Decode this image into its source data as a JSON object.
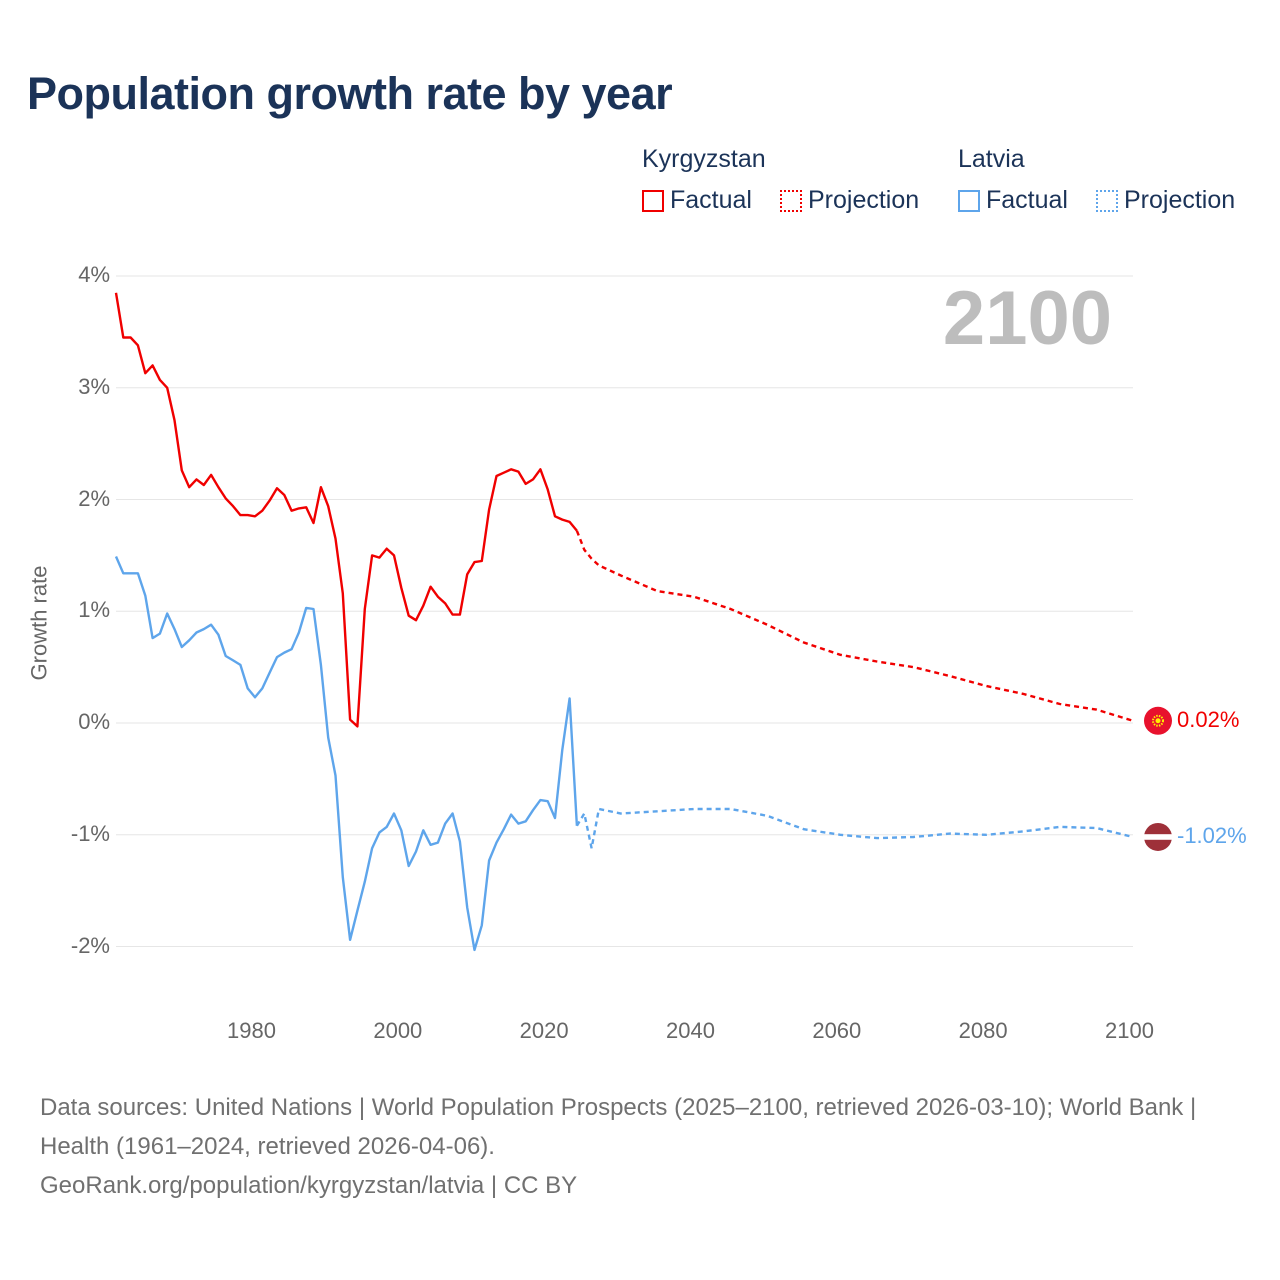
{
  "title": "Population growth rate by year",
  "legend": {
    "groups": [
      {
        "country": "Kyrgyzstan",
        "factual": "Factual",
        "projection": "Projection",
        "color": "#f00000"
      },
      {
        "country": "Latvia",
        "factual": "Factual",
        "projection": "Projection",
        "color": "#5ea5eb"
      }
    ]
  },
  "current_year": "2100",
  "footer": {
    "sources": "Data sources: United Nations | World Population Prospects (2025–2100, retrieved 2026-03-10); World Bank | Health (1961–2024, retrieved 2026-04-06).",
    "credit": "GeoRank.org/population/kyrgyzstan/latvia | CC BY"
  },
  "chart_data": {
    "type": "line",
    "title": "Population growth rate by year",
    "xlabel": "",
    "ylabel": "Growth rate",
    "xlim": [
      1961,
      2100
    ],
    "ylim": [
      -2.5,
      4.1
    ],
    "x_ticks": [
      "1980",
      "2000",
      "2020",
      "2040",
      "2060",
      "2080",
      "2100"
    ],
    "x_tick_values": [
      1980,
      2000,
      2020,
      2040,
      2060,
      2080,
      2100
    ],
    "y_ticks": [
      "4%",
      "3%",
      "2%",
      "1%",
      "0%",
      "-1%",
      "-2%"
    ],
    "y_tick_values": [
      4,
      3,
      2,
      1,
      0,
      -1,
      -2
    ],
    "grid": true,
    "series": [
      {
        "name": "Kyrgyzstan",
        "color": "#f00000",
        "end_label": "0.02%",
        "factual": {
          "start_year": 1961,
          "values": [
            3.85,
            3.45,
            3.45,
            3.38,
            3.13,
            3.2,
            3.07,
            3.0,
            2.71,
            2.26,
            2.11,
            2.18,
            2.13,
            2.22,
            2.11,
            2.01,
            1.94,
            1.86,
            1.86,
            1.85,
            1.9,
            1.99,
            2.1,
            2.04,
            1.9,
            1.92,
            1.93,
            1.79,
            2.11,
            1.94,
            1.65,
            1.16,
            0.03,
            -0.03,
            1.02,
            1.5,
            1.48,
            1.56,
            1.5,
            1.21,
            0.96,
            0.92,
            1.05,
            1.22,
            1.13,
            1.07,
            0.97,
            0.97,
            1.33,
            1.44,
            1.45,
            1.91,
            2.21,
            2.24,
            2.27,
            2.25,
            2.14,
            2.18,
            2.27,
            2.09,
            1.85,
            1.82,
            1.8,
            1.72
          ]
        },
        "projection": {
          "x": [
            2024,
            2025,
            2026,
            2027,
            2030,
            2035,
            2040,
            2045,
            2050,
            2055,
            2060,
            2065,
            2070,
            2075,
            2080,
            2085,
            2090,
            2095,
            2100
          ],
          "values": [
            1.72,
            1.55,
            1.47,
            1.41,
            1.32,
            1.18,
            1.13,
            1.02,
            0.88,
            0.72,
            0.61,
            0.55,
            0.5,
            0.42,
            0.33,
            0.26,
            0.17,
            0.12,
            0.02
          ]
        }
      },
      {
        "name": "Latvia",
        "color": "#5ea5eb",
        "end_label": "-1.02%",
        "factual": {
          "start_year": 1961,
          "values": [
            1.49,
            1.34,
            1.34,
            1.34,
            1.14,
            0.76,
            0.8,
            0.98,
            0.84,
            0.68,
            0.74,
            0.81,
            0.84,
            0.88,
            0.79,
            0.6,
            0.56,
            0.52,
            0.31,
            0.23,
            0.31,
            0.45,
            0.59,
            0.63,
            0.66,
            0.81,
            1.03,
            1.02,
            0.52,
            -0.13,
            -0.47,
            -1.38,
            -1.94,
            -1.68,
            -1.42,
            -1.12,
            -0.98,
            -0.93,
            -0.81,
            -0.96,
            -1.28,
            -1.15,
            -0.96,
            -1.09,
            -1.07,
            -0.9,
            -0.81,
            -1.06,
            -1.65,
            -2.03,
            -1.81,
            -1.23,
            -1.07,
            -0.95,
            -0.82,
            -0.9,
            -0.88,
            -0.78,
            -0.69,
            -0.7,
            -0.85,
            -0.24,
            0.22,
            -0.92
          ]
        },
        "projection": {
          "x": [
            2024,
            2025,
            2026,
            2027,
            2030,
            2035,
            2040,
            2045,
            2050,
            2055,
            2060,
            2065,
            2070,
            2075,
            2080,
            2085,
            2090,
            2095,
            2100
          ],
          "values": [
            -0.92,
            -0.81,
            -1.12,
            -0.77,
            -0.81,
            -0.79,
            -0.77,
            -0.77,
            -0.83,
            -0.95,
            -1.0,
            -1.03,
            -1.02,
            -0.99,
            -1.0,
            -0.97,
            -0.93,
            -0.94,
            -1.02
          ]
        }
      }
    ]
  }
}
